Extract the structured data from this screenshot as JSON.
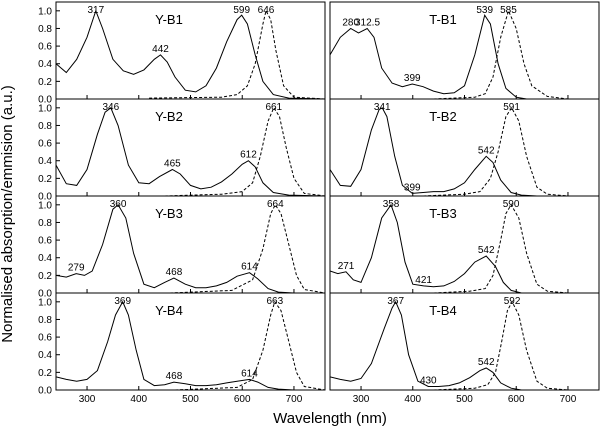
{
  "figure": {
    "ylabel": "Normalised absorption/emmision (a.u.)",
    "xlabel": "Wavelength (nm)"
  },
  "chart_data": [
    {
      "type": "line",
      "title": "Y-B1",
      "xlim": [
        240,
        760
      ],
      "ylim": [
        0,
        1.1
      ],
      "xticks": [],
      "yticks": [
        0.0,
        0.2,
        0.4,
        0.6,
        0.8,
        1.0
      ],
      "ytick_labels": [
        "0.0",
        "0.2",
        "0.4",
        "0.6",
        "0.8",
        "1.0"
      ],
      "series": [
        {
          "style": "solid",
          "x": [
            240,
            260,
            280,
            300,
            317,
            330,
            350,
            370,
            390,
            410,
            430,
            442,
            455,
            470,
            490,
            510,
            530,
            550,
            570,
            590,
            599,
            610,
            625,
            640,
            660,
            690,
            760
          ],
          "y": [
            0.4,
            0.3,
            0.45,
            0.7,
            1.0,
            0.8,
            0.45,
            0.32,
            0.28,
            0.33,
            0.45,
            0.5,
            0.42,
            0.25,
            0.1,
            0.08,
            0.15,
            0.35,
            0.65,
            0.9,
            0.95,
            0.85,
            0.5,
            0.2,
            0.05,
            0.01,
            0.0
          ]
        },
        {
          "style": "dashed",
          "x": [
            420,
            560,
            590,
            610,
            625,
            640,
            646,
            655,
            665,
            680,
            700,
            760
          ],
          "y": [
            0.01,
            0.02,
            0.05,
            0.15,
            0.4,
            0.85,
            1.0,
            0.9,
            0.55,
            0.15,
            0.02,
            0.0
          ]
        }
      ],
      "peak_labels": [
        {
          "x": 317,
          "y": 1.0,
          "text": "317"
        },
        {
          "x": 442,
          "y": 0.5,
          "text": "442"
        },
        {
          "x": 599,
          "y": 0.95,
          "text": "599"
        },
        {
          "x": 646,
          "y": 1.0,
          "text": "646"
        }
      ]
    },
    {
      "type": "line",
      "title": "T-B1",
      "xlim": [
        240,
        760
      ],
      "ylim": [
        0,
        1.1
      ],
      "xticks": [],
      "yticks": [],
      "series": [
        {
          "style": "solid",
          "x": [
            240,
            260,
            280,
            295,
            312,
            325,
            340,
            360,
            380,
            399,
            420,
            440,
            460,
            480,
            500,
            520,
            539,
            550,
            565,
            580,
            600,
            620,
            660,
            760
          ],
          "y": [
            0.5,
            0.7,
            0.8,
            0.75,
            0.8,
            0.7,
            0.35,
            0.18,
            0.14,
            0.17,
            0.14,
            0.09,
            0.06,
            0.07,
            0.15,
            0.5,
            0.95,
            0.85,
            0.4,
            0.12,
            0.02,
            0.0,
            0.0,
            0.0
          ]
        },
        {
          "style": "dashed",
          "x": [
            440,
            520,
            540,
            555,
            570,
            585,
            600,
            615,
            630,
            660,
            700,
            760
          ],
          "y": [
            0.0,
            0.02,
            0.06,
            0.25,
            0.7,
            1.0,
            0.8,
            0.4,
            0.15,
            0.03,
            0.0,
            0.0
          ]
        }
      ],
      "peak_labels": [
        {
          "x": 280,
          "y": 0.8,
          "text": "280"
        },
        {
          "x": 312.5,
          "y": 0.8,
          "text": "312.5"
        },
        {
          "x": 399,
          "y": 0.17,
          "text": "399"
        },
        {
          "x": 539,
          "y": 0.95,
          "text": "539"
        },
        {
          "x": 585,
          "y": 1.0,
          "text": "585"
        }
      ]
    },
    {
      "type": "line",
      "title": "Y-B2",
      "xlim": [
        240,
        760
      ],
      "ylim": [
        0,
        1.1
      ],
      "xticks": [],
      "yticks": [
        0.0,
        0.2,
        0.4,
        0.6,
        0.8,
        1.0
      ],
      "ytick_labels": [
        "0.0",
        "0.2",
        "0.4",
        "0.6",
        "0.8",
        "1.0"
      ],
      "series": [
        {
          "style": "solid",
          "x": [
            240,
            260,
            280,
            300,
            320,
            335,
            346,
            360,
            380,
            400,
            420,
            440,
            465,
            480,
            500,
            520,
            540,
            560,
            580,
            600,
            612,
            625,
            640,
            660,
            690,
            760
          ],
          "y": [
            0.35,
            0.14,
            0.12,
            0.3,
            0.7,
            0.95,
            1.0,
            0.8,
            0.35,
            0.15,
            0.14,
            0.22,
            0.3,
            0.25,
            0.12,
            0.08,
            0.1,
            0.16,
            0.25,
            0.36,
            0.4,
            0.33,
            0.15,
            0.04,
            0.01,
            0.0
          ]
        },
        {
          "style": "dashed",
          "x": [
            450,
            560,
            600,
            620,
            635,
            650,
            661,
            672,
            685,
            700,
            720,
            760
          ],
          "y": [
            0.0,
            0.02,
            0.05,
            0.15,
            0.45,
            0.85,
            1.0,
            0.9,
            0.55,
            0.2,
            0.03,
            0.0
          ]
        }
      ],
      "peak_labels": [
        {
          "x": 346,
          "y": 1.0,
          "text": "346"
        },
        {
          "x": 465,
          "y": 0.3,
          "text": "465"
        },
        {
          "x": 612,
          "y": 0.4,
          "text": "612"
        },
        {
          "x": 661,
          "y": 1.0,
          "text": "661"
        }
      ]
    },
    {
      "type": "line",
      "title": "T-B2",
      "xlim": [
        240,
        760
      ],
      "ylim": [
        0,
        1.1
      ],
      "xticks": [],
      "yticks": [],
      "series": [
        {
          "style": "solid",
          "x": [
            240,
            260,
            280,
            300,
            320,
            335,
            341,
            350,
            365,
            380,
            399,
            420,
            440,
            460,
            480,
            500,
            520,
            542,
            555,
            570,
            590,
            610,
            640,
            760
          ],
          "y": [
            0.3,
            0.12,
            0.11,
            0.3,
            0.75,
            0.98,
            1.0,
            0.9,
            0.45,
            0.12,
            0.03,
            0.04,
            0.05,
            0.05,
            0.08,
            0.15,
            0.3,
            0.45,
            0.38,
            0.18,
            0.04,
            0.01,
            0.0,
            0.0
          ]
        },
        {
          "style": "dashed",
          "x": [
            420,
            500,
            530,
            550,
            565,
            580,
            591,
            605,
            620,
            640,
            660,
            700,
            760
          ],
          "y": [
            0.0,
            0.02,
            0.05,
            0.2,
            0.5,
            0.9,
            1.0,
            0.85,
            0.45,
            0.1,
            0.02,
            0.0,
            0.0
          ]
        }
      ],
      "peak_labels": [
        {
          "x": 341,
          "y": 1.0,
          "text": "341"
        },
        {
          "x": 399,
          "y": 0.03,
          "text": "399"
        },
        {
          "x": 542,
          "y": 0.45,
          "text": "542"
        },
        {
          "x": 591,
          "y": 1.0,
          "text": "591"
        }
      ]
    },
    {
      "type": "line",
      "title": "Y-B3",
      "xlim": [
        240,
        760
      ],
      "ylim": [
        0,
        1.1
      ],
      "xticks": [],
      "yticks": [
        0.0,
        0.2,
        0.4,
        0.6,
        0.8,
        1.0
      ],
      "ytick_labels": [
        "0.0",
        "0.2",
        "0.4",
        "0.6",
        "0.8",
        "1.0"
      ],
      "series": [
        {
          "style": "solid",
          "x": [
            240,
            260,
            279,
            295,
            310,
            330,
            350,
            360,
            375,
            390,
            410,
            430,
            450,
            468,
            490,
            510,
            530,
            550,
            570,
            590,
            614,
            630,
            650,
            670,
            700,
            760
          ],
          "y": [
            0.2,
            0.18,
            0.22,
            0.2,
            0.25,
            0.55,
            0.95,
            1.0,
            0.85,
            0.45,
            0.1,
            0.06,
            0.12,
            0.17,
            0.1,
            0.06,
            0.06,
            0.08,
            0.12,
            0.19,
            0.23,
            0.16,
            0.05,
            0.01,
            0.0,
            0.0
          ]
        },
        {
          "style": "dashed",
          "x": [
            460,
            580,
            620,
            640,
            655,
            664,
            675,
            690,
            705,
            720,
            760
          ],
          "y": [
            0.0,
            0.03,
            0.15,
            0.5,
            0.9,
            1.0,
            0.9,
            0.55,
            0.2,
            0.04,
            0.0
          ]
        }
      ],
      "peak_labels": [
        {
          "x": 279,
          "y": 0.22,
          "text": "279"
        },
        {
          "x": 360,
          "y": 1.0,
          "text": "360"
        },
        {
          "x": 468,
          "y": 0.17,
          "text": "468"
        },
        {
          "x": 614,
          "y": 0.23,
          "text": "614"
        },
        {
          "x": 664,
          "y": 1.0,
          "text": "664"
        }
      ]
    },
    {
      "type": "line",
      "title": "T-B3",
      "xlim": [
        240,
        760
      ],
      "ylim": [
        0,
        1.1
      ],
      "xticks": [],
      "yticks": [],
      "series": [
        {
          "style": "solid",
          "x": [
            240,
            255,
            271,
            285,
            300,
            320,
            340,
            358,
            370,
            385,
            400,
            421,
            440,
            460,
            480,
            500,
            520,
            542,
            560,
            575,
            590,
            610,
            640,
            760
          ],
          "y": [
            0.25,
            0.22,
            0.24,
            0.15,
            0.12,
            0.4,
            0.85,
            1.0,
            0.8,
            0.35,
            0.1,
            0.08,
            0.07,
            0.08,
            0.13,
            0.22,
            0.35,
            0.42,
            0.3,
            0.12,
            0.03,
            0.0,
            0.0,
            0.0
          ]
        },
        {
          "style": "dashed",
          "x": [
            440,
            510,
            540,
            555,
            570,
            580,
            590,
            605,
            620,
            640,
            660,
            700,
            760
          ],
          "y": [
            0.0,
            0.02,
            0.05,
            0.2,
            0.6,
            0.9,
            1.0,
            0.85,
            0.45,
            0.1,
            0.02,
            0.0,
            0.0
          ]
        }
      ],
      "peak_labels": [
        {
          "x": 271,
          "y": 0.24,
          "text": "271"
        },
        {
          "x": 358,
          "y": 1.0,
          "text": "358"
        },
        {
          "x": 421,
          "y": 0.08,
          "text": "421"
        },
        {
          "x": 542,
          "y": 0.42,
          "text": "542"
        },
        {
          "x": 590,
          "y": 1.0,
          "text": "590"
        }
      ]
    },
    {
      "type": "line",
      "title": "Y-B4",
      "xlim": [
        240,
        760
      ],
      "ylim": [
        0,
        1.1
      ],
      "xticks": [
        300,
        400,
        500,
        600,
        700
      ],
      "xtick_labels": [
        "300",
        "400",
        "500",
        "600",
        "700"
      ],
      "yticks": [
        0.0,
        0.2,
        0.4,
        0.6,
        0.8,
        1.0
      ],
      "ytick_labels": [
        "0.0",
        "0.2",
        "0.4",
        "0.6",
        "0.8",
        "1.0"
      ],
      "series": [
        {
          "style": "solid",
          "x": [
            240,
            260,
            280,
            300,
            320,
            340,
            355,
            369,
            380,
            395,
            410,
            430,
            450,
            468,
            490,
            510,
            530,
            550,
            570,
            590,
            614,
            630,
            650,
            670,
            700,
            760
          ],
          "y": [
            0.15,
            0.12,
            0.1,
            0.12,
            0.22,
            0.55,
            0.85,
            1.0,
            0.85,
            0.45,
            0.12,
            0.05,
            0.06,
            0.09,
            0.07,
            0.05,
            0.05,
            0.06,
            0.08,
            0.1,
            0.12,
            0.09,
            0.03,
            0.01,
            0.0,
            0.0
          ]
        },
        {
          "style": "dashed",
          "x": [
            470,
            590,
            620,
            640,
            655,
            663,
            675,
            690,
            705,
            720,
            760
          ],
          "y": [
            0.0,
            0.03,
            0.12,
            0.45,
            0.85,
            1.0,
            0.9,
            0.55,
            0.2,
            0.04,
            0.0
          ]
        }
      ],
      "peak_labels": [
        {
          "x": 369,
          "y": 1.0,
          "text": "369"
        },
        {
          "x": 468,
          "y": 0.09,
          "text": "468"
        },
        {
          "x": 614,
          "y": 0.12,
          "text": "614"
        },
        {
          "x": 663,
          "y": 1.0,
          "text": "663"
        }
      ]
    },
    {
      "type": "line",
      "title": "T-B4",
      "xlim": [
        240,
        760
      ],
      "ylim": [
        0,
        1.1
      ],
      "xticks": [
        300,
        400,
        500,
        600,
        700
      ],
      "xtick_labels": [
        "300",
        "400",
        "500",
        "600",
        "700"
      ],
      "yticks": [],
      "series": [
        {
          "style": "solid",
          "x": [
            240,
            260,
            280,
            300,
            320,
            345,
            360,
            367,
            378,
            392,
            410,
            430,
            450,
            470,
            490,
            510,
            530,
            542,
            555,
            570,
            590,
            610,
            640,
            760
          ],
          "y": [
            0.15,
            0.12,
            0.1,
            0.13,
            0.3,
            0.7,
            0.93,
            1.0,
            0.85,
            0.4,
            0.1,
            0.04,
            0.04,
            0.05,
            0.08,
            0.14,
            0.22,
            0.25,
            0.2,
            0.08,
            0.02,
            0.0,
            0.0,
            0.0
          ]
        },
        {
          "style": "dashed",
          "x": [
            440,
            520,
            545,
            560,
            572,
            583,
            592,
            605,
            620,
            640,
            660,
            700,
            760
          ],
          "y": [
            0.0,
            0.02,
            0.06,
            0.2,
            0.55,
            0.9,
            1.0,
            0.85,
            0.45,
            0.1,
            0.02,
            0.0,
            0.0
          ]
        }
      ],
      "peak_labels": [
        {
          "x": 367,
          "y": 1.0,
          "text": "367"
        },
        {
          "x": 430,
          "y": 0.04,
          "text": "430"
        },
        {
          "x": 542,
          "y": 0.25,
          "text": "542"
        },
        {
          "x": 592,
          "y": 1.0,
          "text": "592"
        }
      ]
    }
  ]
}
